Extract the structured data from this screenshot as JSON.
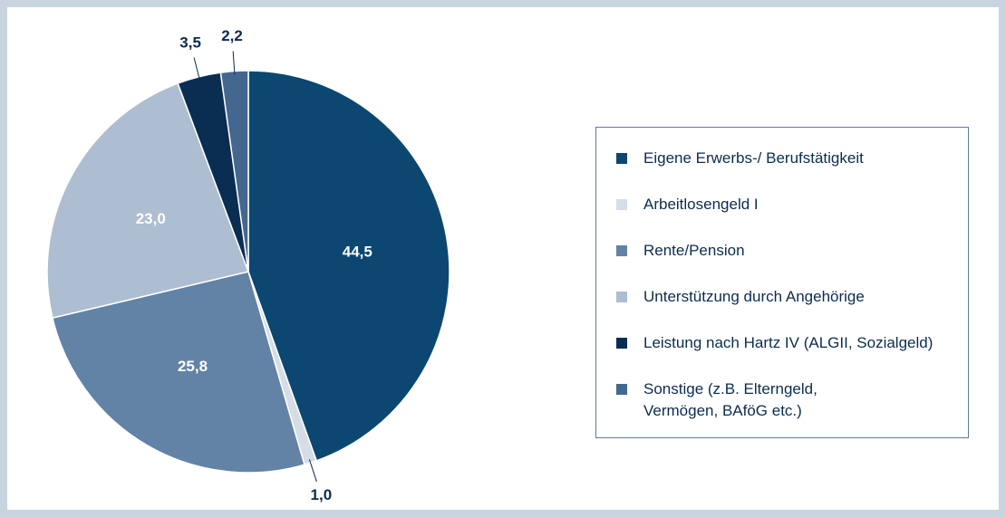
{
  "chart_data": {
    "type": "pie",
    "series": [
      {
        "name": "Eigene Erwerbs-/ Berufstätigkeit",
        "color": "#0b4770",
        "values": [
          44.5
        ],
        "value_labels": [
          "44,5"
        ]
      },
      {
        "name": "Arbeitlosengeld I",
        "color": "#d5dde6",
        "values": [
          1.0
        ],
        "value_labels": [
          "1,0"
        ]
      },
      {
        "name": "Rente/Pension",
        "color": "#6283a6",
        "values": [
          25.8
        ],
        "value_labels": [
          "25,8"
        ]
      },
      {
        "name": "Unterstützung durch Angehörige",
        "color": "#adbdd2",
        "values": [
          23.0
        ],
        "value_labels": [
          "23,0"
        ]
      },
      {
        "name": "Leistung nach Hartz IV (ALGII, Sozialgeld)",
        "color": "#0a2d52",
        "values": [
          3.5
        ],
        "value_labels": [
          "3,5"
        ]
      },
      {
        "name": "Sonstige (z.B. Elterngeld, Vermögen, BAföG etc.)",
        "color": "#43678f",
        "values": [
          2.2
        ],
        "value_labels": [
          "2,2"
        ]
      }
    ]
  }
}
